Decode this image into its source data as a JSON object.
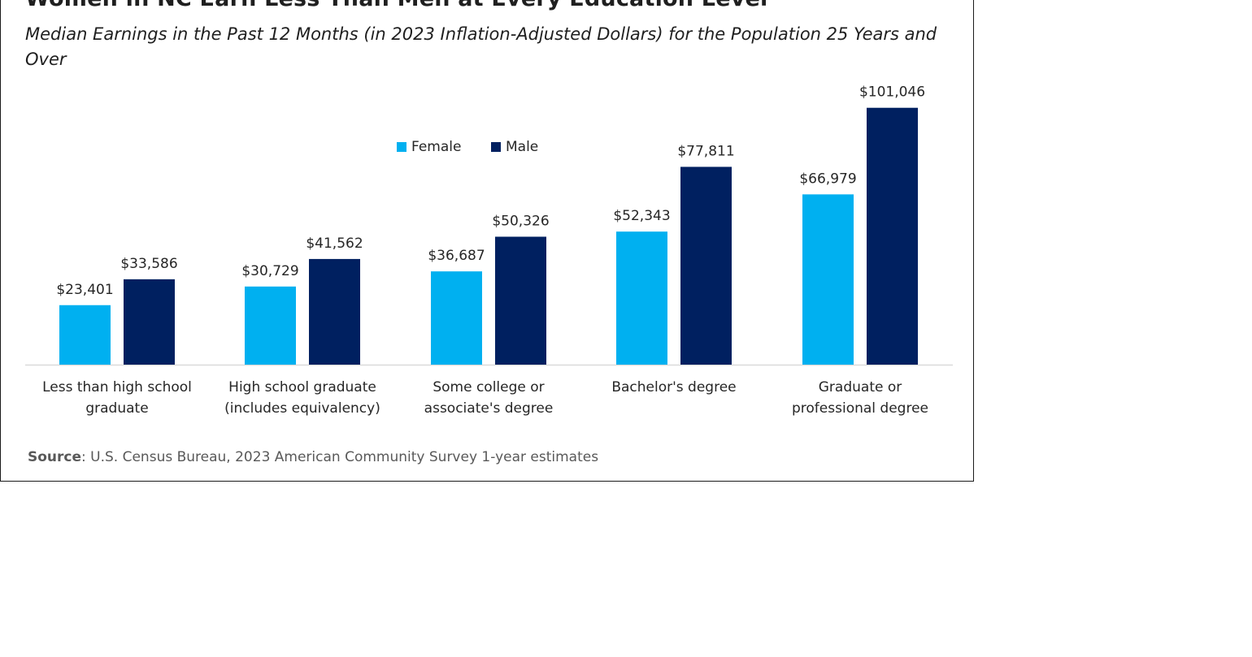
{
  "title": "Women in NC Earn Less Than Men at Every Education Level",
  "subtitle": "Median Earnings in the Past 12 Months (in 2023 Inflation-Adjusted Dollars) for the Population 25 Years and Over",
  "source": {
    "label": "Source",
    "text": ": U.S. Census Bureau, 2023 American Community Survey 1-year estimates"
  },
  "colors": {
    "female": "#00b0f0",
    "male": "#002060",
    "axis": "#d9d9d9",
    "text": "#262626"
  },
  "chart_data": {
    "type": "bar",
    "title": "Women in NC Earn Less Than Men at Every Education Level",
    "subtitle": "Median Earnings in the Past 12 Months (in 2023 Inflation-Adjusted Dollars) for the Population 25 Years and Over",
    "xlabel": "",
    "ylabel": "",
    "ylim": [
      0,
      105000
    ],
    "grid": false,
    "legend_position": "top-center",
    "categories": [
      [
        "Less than high school",
        "graduate"
      ],
      [
        "High school graduate",
        "(includes equivalency)"
      ],
      [
        "Some college or",
        "associate's degree"
      ],
      [
        "Bachelor's degree"
      ],
      [
        "Graduate or",
        "professional degree"
      ]
    ],
    "series": [
      {
        "name": "Female",
        "values": [
          23401,
          30729,
          36687,
          52343,
          66979
        ],
        "labels": [
          "$23,401",
          "$30,729",
          "$36,687",
          "$52,343",
          "$66,979"
        ]
      },
      {
        "name": "Male",
        "values": [
          33586,
          41562,
          50326,
          77811,
          101046
        ],
        "labels": [
          "$33,586",
          "$41,562",
          "$50,326",
          "$77,811",
          "$101,046"
        ]
      }
    ]
  }
}
